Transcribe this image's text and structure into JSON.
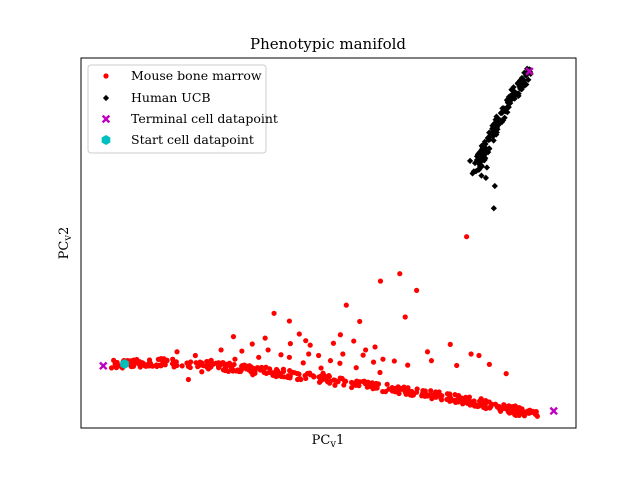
{
  "chart_data": {
    "type": "scatter",
    "title": "Phenotypic manifold",
    "xlabel": "PC",
    "xlabel_sub": "v",
    "xlabel_suffix": "1",
    "ylabel": "PC",
    "ylabel_sub": "v",
    "ylabel_suffix": "2",
    "xlim": [
      0,
      100
    ],
    "ylim": [
      0,
      100
    ],
    "ticks_visible": false,
    "grid": false,
    "legend": {
      "placement": "top-left",
      "entries": [
        {
          "label": "Mouse bone marrow",
          "marker": "circle",
          "color": "#ff0000"
        },
        {
          "label": "Human UCB",
          "marker": "diamond",
          "color": "#000000"
        },
        {
          "label": "Terminal cell datapoint",
          "marker": "x",
          "color": "#bf00bf"
        },
        {
          "label": "Start cell datapoint",
          "marker": "hexagon",
          "color": "#00bfbf"
        }
      ]
    },
    "series": [
      {
        "name": "Mouse bone marrow",
        "marker": "circle",
        "color": "#ff0000",
        "points": [
          [
            6.9,
            17.2
          ],
          [
            21.7,
            13.1
          ],
          [
            48.9,
            14.8
          ],
          [
            77.9,
            51.7
          ],
          [
            64.4,
            41.7
          ],
          [
            60.5,
            39.7
          ],
          [
            67.8,
            37.2
          ],
          [
            34.6,
            22.7
          ],
          [
            46.3,
            22.4
          ],
          [
            44.1,
            25.4
          ],
          [
            42.1,
            28.9
          ],
          [
            39.0,
            31.0
          ],
          [
            52.4,
            25.2
          ],
          [
            53.6,
            33.2
          ],
          [
            56.3,
            28.8
          ],
          [
            65.5,
            30.0
          ],
          [
            70.0,
            20.6
          ],
          [
            74.6,
            22.6
          ],
          [
            78.8,
            20.0
          ],
          [
            82.5,
            17.2
          ],
          [
            61.0,
            18.6
          ],
          [
            57.5,
            21.1
          ],
          [
            52.9,
            20.0
          ],
          [
            50.4,
            18.2
          ],
          [
            40.4,
            19.8
          ],
          [
            37.8,
            21.1
          ],
          [
            31.1,
            18.6
          ],
          [
            28.3,
            21.1
          ],
          [
            35.9,
            19.1
          ],
          [
            33.0,
            17.0
          ],
          [
            44.9,
            17.6
          ],
          [
            46.0,
            20.0
          ],
          [
            40.9,
            15.9
          ],
          [
            55.1,
            23.5
          ],
          [
            59.4,
            21.9
          ],
          [
            63.3,
            18.1
          ],
          [
            48.5,
            16.2
          ],
          [
            26.3,
            18.3
          ],
          [
            19.4,
            20.6
          ],
          [
            23.1,
            19.6
          ],
          [
            30.8,
            24.7
          ],
          [
            32.5,
            20.8
          ],
          [
            45.4,
            23.6
          ],
          [
            51.0,
            22.9
          ],
          [
            57.0,
            19.7
          ],
          [
            66.0,
            17.0
          ],
          [
            70.8,
            18.2
          ],
          [
            75.9,
            16.9
          ],
          [
            80.4,
            19.6
          ],
          [
            85.9,
            14.7
          ],
          [
            52.3,
            17.5
          ],
          [
            42.3,
            22.8
          ],
          [
            37.2,
            24.3
          ],
          [
            27.8,
            16.3
          ],
          [
            24.4,
            15.2
          ],
          [
            15.9,
            18.6
          ],
          [
            13.0,
            16.8
          ],
          [
            30.6,
            15.9
          ],
          [
            34.7,
            14.4
          ],
          [
            39.4,
            13.9
          ],
          [
            44.4,
            13.1
          ],
          [
            55.6,
            16.3
          ],
          [
            60.4,
            15.0
          ],
          [
            59.1,
            17.8
          ],
          [
            48.0,
            19.6
          ],
          [
            42.1,
            19.1
          ],
          [
            36.5,
            16.4
          ],
          [
            30.0,
            17.5
          ],
          [
            24.0,
            17.0
          ],
          [
            18.8,
            16.5
          ]
        ],
        "trajectory": [
          [
            6.9,
            17.2
          ],
          [
            12,
            17.6
          ],
          [
            18,
            17.7
          ],
          [
            24,
            17.2
          ],
          [
            30,
            16.4
          ],
          [
            36,
            15.6
          ],
          [
            42,
            14.6
          ],
          [
            48,
            13.4
          ],
          [
            54,
            12.2
          ],
          [
            60,
            11.1
          ],
          [
            66,
            10.0
          ],
          [
            72,
            8.8
          ],
          [
            78,
            7.4
          ],
          [
            84,
            5.9
          ],
          [
            88,
            4.6
          ],
          [
            91.9,
            3.6
          ]
        ],
        "trajectory_count": 420
      },
      {
        "name": "Human UCB",
        "marker": "diamond",
        "color": "#000000",
        "points": [
          [
            83.4,
            59.4
          ],
          [
            83.6,
            65.4
          ],
          [
            79.1,
            68.8
          ],
          [
            80.2,
            69.8
          ],
          [
            80.9,
            68.2
          ],
          [
            79.6,
            71.6
          ],
          [
            81.2,
            72.4
          ],
          [
            80.0,
            73.4
          ],
          [
            82.0,
            70.4
          ],
          [
            78.6,
            72.2
          ],
          [
            81.8,
            67.6
          ],
          [
            80.6,
            70.8
          ],
          [
            79.8,
            69.4
          ]
        ],
        "trajectory": [
          [
            80.0,
            70.0
          ],
          [
            81.2,
            74.0
          ],
          [
            82.5,
            78.0
          ],
          [
            84.0,
            82.0
          ],
          [
            85.6,
            86.0
          ],
          [
            87.4,
            90.0
          ],
          [
            89.2,
            93.6
          ],
          [
            90.6,
            96.4
          ]
        ],
        "trajectory_count": 140
      },
      {
        "name": "Terminal cell datapoint",
        "marker": "x",
        "color": "#bf00bf",
        "points": [
          [
            4.5,
            16.8
          ],
          [
            90.6,
            96.4
          ],
          [
            95.5,
            4.6
          ]
        ]
      },
      {
        "name": "Start cell datapoint",
        "marker": "hexagon",
        "color": "#00bfbf",
        "points": [
          [
            8.8,
            17.3
          ]
        ]
      }
    ]
  }
}
